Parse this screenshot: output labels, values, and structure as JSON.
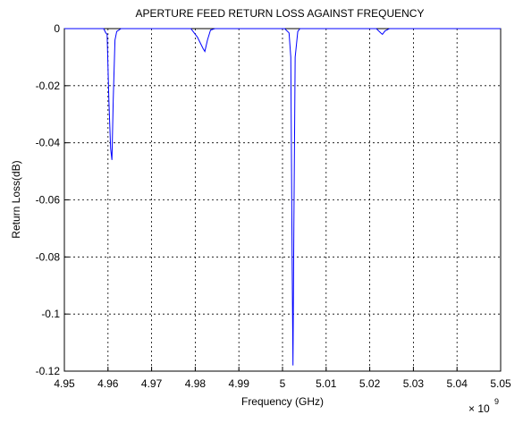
{
  "chart_data": {
    "type": "line",
    "title": "APERTURE FEED RETURN LOSS AGAINST FREQUENCY",
    "x_label": "Frequency (GHz)",
    "y_label": "Return Loss(dB)",
    "x_multiplier": "× 10",
    "x_exponent": "9",
    "x": [
      4.95,
      4.959,
      4.9595,
      4.9598,
      4.9602,
      4.9606,
      4.9609,
      4.9612,
      4.9616,
      4.962,
      4.963,
      4.979,
      4.9805,
      4.9818,
      4.9822,
      4.9828,
      4.9835,
      4.9845,
      5.0005,
      5.0015,
      5.0019,
      5.0022,
      5.0024,
      5.0026,
      5.0029,
      5.0035,
      5.004,
      5.0215,
      5.0225,
      5.0229,
      5.0235,
      5.0245,
      5.05
    ],
    "series": [
      {
        "color": "#0000ff",
        "values": [
          0,
          0,
          -0.0015,
          -0.002,
          -0.025,
          -0.042,
          -0.046,
          -0.025,
          -0.004,
          -0.001,
          0,
          0,
          -0.003,
          -0.007,
          -0.008,
          -0.004,
          -0.0005,
          0,
          0,
          -0.0015,
          -0.01,
          -0.08,
          -0.118,
          -0.07,
          -0.01,
          -0.001,
          0,
          0,
          -0.0015,
          -0.002,
          -0.0008,
          0,
          0
        ]
      }
    ],
    "xlim": [
      4.95,
      5.05
    ],
    "ylim": [
      -0.12,
      0
    ],
    "xticks": [
      4.95,
      4.96,
      4.97,
      4.98,
      4.99,
      5,
      5.01,
      5.02,
      5.03,
      5.04,
      5.05
    ],
    "yticks": [
      0,
      -0.02,
      -0.04,
      -0.06,
      -0.08,
      -0.1,
      -0.12
    ],
    "grid": true
  }
}
